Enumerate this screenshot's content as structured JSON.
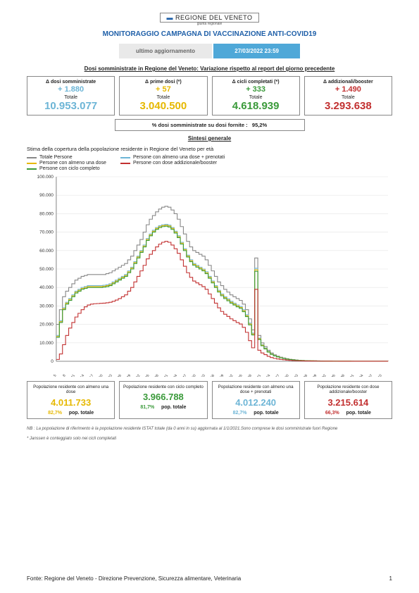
{
  "logo": {
    "text": "REGIONE DEL VENETO",
    "sub": "giunta regionale"
  },
  "title": "MONITORAGGIO CAMPAGNA DI VACCINAZIONE ANTI-COVID19",
  "update": {
    "label": "ultimo aggiornamento",
    "value": "27/03/2022 23:59"
  },
  "section1_title": "Dosi somministrate in Regione del Veneto: Variazione rispetto al report del giorno precedente",
  "deltas": [
    {
      "label": "Δ dosi somministrate",
      "delta": "+ 1.880",
      "tot_label": "Totale",
      "total": "10.953.077",
      "color": "#6db5d6"
    },
    {
      "label": "Δ prime dosi (*)",
      "delta": "+ 57",
      "tot_label": "Totale",
      "total": "3.040.500",
      "color": "#e6b800"
    },
    {
      "label": "Δ cicli completati (*)",
      "delta": "+ 333",
      "tot_label": "Totale",
      "total": "4.618.939",
      "color": "#3a9a3a"
    },
    {
      "label": "Δ addizionali/booster",
      "delta": "+ 1.490",
      "tot_label": "Totale",
      "total": "3.293.638",
      "color": "#c23030"
    }
  ],
  "pct_box": {
    "label": "% dosi somministrate su dosi fornite :",
    "value": "95,2%"
  },
  "section2_title": "Sintesi generale",
  "subheader": "Stima della copertura della popolazione residente in Regione del Veneto per età",
  "legend": [
    {
      "label": "Totale Persone",
      "color": "#888888"
    },
    {
      "label": "Persone con almeno una dose + prenotati",
      "color": "#6db5d6"
    },
    {
      "label": "Persone con almeno una dose",
      "color": "#e6b800"
    },
    {
      "label": "Persone con dose addizionale/booster",
      "color": "#c23030"
    },
    {
      "label": "Persone con ciclo completo",
      "color": "#3a9a3a"
    }
  ],
  "chart": {
    "ylim": [
      0,
      100000
    ],
    "ytick_step": 10000,
    "yticks_labels": [
      "0",
      "10.000",
      "20.000",
      "30.000",
      "40.000",
      "50.000",
      "60.000",
      "70.000",
      "80.000",
      "90.000",
      "100.000"
    ],
    "x_start": 5,
    "x_end": 112,
    "x_step_label": 3,
    "grid_color": "#e5e5e5",
    "axis_color": "#666",
    "series": {
      "totale": {
        "color": "#888888",
        "values": [
          20000,
          28000,
          35000,
          38000,
          40000,
          42000,
          44000,
          45000,
          46000,
          46500,
          47000,
          47000,
          47000,
          47000,
          47000,
          47000,
          47500,
          48000,
          49000,
          50000,
          51000,
          52000,
          53000,
          55000,
          57000,
          60000,
          63000,
          66000,
          70000,
          74000,
          77000,
          79000,
          81000,
          82500,
          83500,
          84000,
          83500,
          82000,
          80000,
          77000,
          73000,
          69000,
          65000,
          62000,
          60000,
          59000,
          58000,
          57000,
          55000,
          52000,
          49000,
          46000,
          43000,
          41000,
          39000,
          37500,
          36000,
          35000,
          34000,
          33000,
          31000,
          28000,
          23000,
          17000,
          56000,
          14000,
          10000,
          8000,
          6000,
          4500,
          3500,
          2800,
          2200,
          1800,
          1400,
          1100,
          900,
          700,
          550,
          450,
          380,
          320,
          280,
          240,
          210,
          180,
          160,
          140,
          125,
          110,
          100,
          90,
          80,
          72,
          65,
          58,
          52,
          47,
          43,
          40,
          37,
          35,
          33,
          31,
          30,
          29,
          28,
          27
        ]
      },
      "prenotati": {
        "color": "#6db5d6",
        "values": [
          14000,
          22000,
          29000,
          32000,
          34000,
          36000,
          38000,
          39000,
          40000,
          40500,
          41000,
          41000,
          41000,
          41000,
          41000,
          41200,
          41500,
          42000,
          43000,
          44000,
          45000,
          46000,
          47000,
          49000,
          51000,
          54000,
          57000,
          60000,
          63000,
          66500,
          69000,
          71000,
          72500,
          73500,
          74000,
          74200,
          73800,
          72500,
          70500,
          68000,
          64500,
          61000,
          57500,
          55000,
          53000,
          52000,
          51000,
          50000,
          48500,
          46000,
          43500,
          41000,
          38500,
          36500,
          35000,
          33800,
          32500,
          31500,
          30500,
          29700,
          27900,
          25200,
          20700,
          15300,
          50400,
          12600,
          9000,
          7200,
          5400,
          4050,
          3150,
          2520,
          1980,
          1620,
          1260,
          990,
          810,
          630,
          495,
          405,
          342,
          288,
          252,
          216,
          189,
          162,
          144,
          126,
          113,
          99,
          90,
          81,
          72,
          65,
          59,
          52,
          47,
          42,
          39,
          36,
          33,
          32,
          30,
          28,
          27,
          26,
          25,
          24
        ]
      },
      "una_dose": {
        "color": "#e6b800",
        "values": [
          13500,
          21500,
          28500,
          31500,
          33500,
          35500,
          37500,
          38500,
          39500,
          40000,
          40500,
          40500,
          40500,
          40500,
          40500,
          40700,
          41000,
          41500,
          42500,
          43500,
          44500,
          45500,
          46500,
          48500,
          50500,
          53500,
          56500,
          59500,
          62500,
          66000,
          68500,
          70500,
          72000,
          73000,
          73500,
          73700,
          73300,
          72000,
          70000,
          67500,
          64000,
          60500,
          57000,
          54500,
          52500,
          51500,
          50500,
          49500,
          48000,
          45500,
          43000,
          40500,
          38000,
          36000,
          34500,
          33300,
          32000,
          31000,
          30000,
          29200,
          27400,
          24700,
          20200,
          14800,
          49600,
          12200,
          8700,
          6900,
          5200,
          3900,
          3050,
          2440,
          1920,
          1570,
          1220,
          960,
          790,
          610,
          480,
          395,
          334,
          281,
          246,
          211,
          185,
          158,
          141,
          123,
          110,
          97,
          88,
          79,
          70,
          63,
          57,
          51,
          46,
          41,
          38,
          35,
          32,
          31,
          29,
          27,
          26,
          25,
          24,
          23
        ]
      },
      "completo": {
        "color": "#3a9a3a",
        "values": [
          13000,
          21000,
          28000,
          31000,
          33000,
          35000,
          37000,
          38000,
          39000,
          39500,
          40000,
          40000,
          40000,
          40000,
          40000,
          40200,
          40500,
          41000,
          42000,
          43000,
          44000,
          45000,
          46000,
          48000,
          50000,
          53000,
          56000,
          59000,
          62000,
          65500,
          68000,
          70000,
          71500,
          72500,
          73000,
          73200,
          72800,
          71500,
          69500,
          67000,
          63500,
          60000,
          56500,
          54000,
          52000,
          51000,
          50000,
          49000,
          47500,
          45000,
          42500,
          40000,
          37500,
          35500,
          34000,
          32800,
          31500,
          30500,
          29500,
          28700,
          26900,
          24200,
          19700,
          14300,
          48800,
          11800,
          8400,
          6700,
          5000,
          3750,
          2950,
          2360,
          1860,
          1520,
          1180,
          930,
          770,
          590,
          465,
          385,
          326,
          274,
          240,
          206,
          180,
          154,
          137,
          120,
          107,
          95,
          86,
          77,
          68,
          62,
          56,
          50,
          45,
          40,
          37,
          34,
          31,
          30,
          28,
          26,
          25,
          24,
          23,
          22
        ]
      },
      "booster": {
        "color": "#c23030",
        "values": [
          1000,
          4000,
          9000,
          14000,
          18000,
          21000,
          24000,
          26000,
          28000,
          29500,
          30500,
          31000,
          31200,
          31300,
          31400,
          31500,
          31700,
          32000,
          32500,
          33200,
          34000,
          35000,
          36000,
          38000,
          40000,
          43000,
          46000,
          49000,
          52000,
          55500,
          58000,
          60000,
          62000,
          63500,
          64500,
          65000,
          64500,
          63000,
          61000,
          58500,
          55000,
          51500,
          48000,
          45500,
          43500,
          42500,
          41500,
          40500,
          39000,
          36500,
          34000,
          31500,
          29000,
          27000,
          25500,
          24300,
          23000,
          22000,
          21000,
          20200,
          18400,
          15700,
          11200,
          7300,
          39000,
          6000,
          4500,
          3600,
          2700,
          2025,
          1575,
          1260,
          1000,
          820,
          640,
          500,
          410,
          315,
          250,
          210,
          178,
          150,
          131,
          113,
          99,
          85,
          75,
          66,
          59,
          52,
          47,
          42,
          37,
          34,
          31,
          27,
          25,
          22,
          20,
          19,
          17,
          16,
          15,
          14,
          14,
          13,
          13,
          12
        ]
      }
    }
  },
  "bottom_cards": [
    {
      "label": "Popolazione residente con almeno una dose",
      "value": "4.011.733",
      "pct": "82,7%",
      "pop": "pop. totale",
      "color": "#e6b800"
    },
    {
      "label": "Popolazione residente con ciclo completo",
      "value": "3.966.788",
      "pct": "81,7%",
      "pop": "pop. totale",
      "color": "#3a9a3a"
    },
    {
      "label": "Popolazione residente con almeno una dose + prenotati",
      "value": "4.012.240",
      "pct": "82,7%",
      "pop": "pop. totale",
      "color": "#6db5d6"
    },
    {
      "label": "Popolazione residente con dose addizionale/booster",
      "value": "3.215.614",
      "pct": "66,3%",
      "pop": "pop. totale",
      "color": "#c23030"
    }
  ],
  "notes": [
    "NB : La popolazione di riferimento è la popolazione residente ISTAT totale (da 0 anni in su) aggiornata  al 1/1/2021.Sono comprese le dosi somministrate fuori Regione",
    "* Janssen è conteggiato solo nei cicli completati"
  ],
  "footer": {
    "source": "Fonte: Regione del Veneto - Direzione Prevenzione, Sicurezza alimentare, Veterinaria",
    "page": "1"
  }
}
